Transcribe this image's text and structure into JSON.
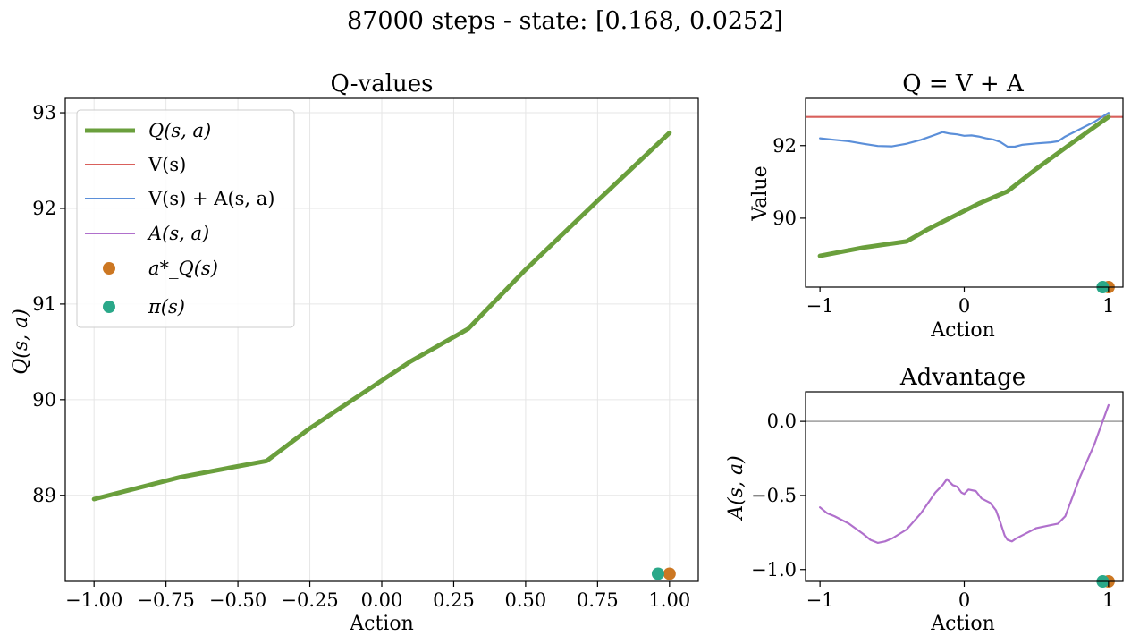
{
  "suptitle": "87000 steps - state: [0.168, 0.0252]",
  "colors": {
    "q": "#6a9f3c",
    "v": "#d9605c",
    "vpa": "#5b8fd9",
    "adv": "#b070cc",
    "aq": "#cc7722",
    "pi": "#2aa889",
    "zero_line": "#aaaaaa"
  },
  "legend": {
    "q": "Q(s, a)",
    "v": "V(s)",
    "vpa": "V(s) + A(s, a)",
    "adv": "A(s, a)",
    "aq": "a*_Q(s)",
    "pi": "π(s)"
  },
  "chart_data": [
    {
      "type": "line",
      "title": "Q-values",
      "xlabel": "Action",
      "ylabel": "Q(s, a)",
      "xlim": [
        -1.1,
        1.1
      ],
      "ylim": [
        88.1,
        93.15
      ],
      "xticks": [
        -1.0,
        -0.75,
        -0.5,
        -0.25,
        0.0,
        0.25,
        0.5,
        0.75,
        1.0
      ],
      "xtick_labels": [
        "−1.00",
        "−0.75",
        "−0.50",
        "−0.25",
        "0.00",
        "0.25",
        "0.50",
        "0.75",
        "1.00"
      ],
      "yticks": [
        89,
        90,
        91,
        92,
        93
      ],
      "ytick_labels": [
        "89",
        "90",
        "91",
        "92",
        "93"
      ],
      "grid": true,
      "legend_position": "upper-left",
      "series": [
        {
          "name": "Q(s, a)",
          "key": "q",
          "x": [
            -1.0,
            -0.7,
            -0.4,
            -0.25,
            -0.1,
            0.1,
            0.3,
            0.5,
            0.75,
            1.0
          ],
          "y": [
            88.96,
            89.19,
            89.36,
            89.7,
            90.0,
            90.4,
            90.74,
            91.36,
            92.08,
            92.79
          ]
        }
      ],
      "markers": [
        {
          "name": "a*_Q(s)",
          "key": "aq",
          "x": 1.0,
          "y": 88.18
        },
        {
          "name": "π(s)",
          "key": "pi",
          "x": 0.96,
          "y": 88.18
        }
      ]
    },
    {
      "type": "line",
      "title": "Q = V + A",
      "xlabel": "Action",
      "ylabel": "Value",
      "xlim": [
        -1.1,
        1.1
      ],
      "ylim": [
        88.1,
        93.3
      ],
      "xticks": [
        -1,
        0,
        1
      ],
      "xtick_labels": [
        "−1",
        "0",
        "1"
      ],
      "yticks": [
        90,
        92
      ],
      "ytick_labels": [
        "90",
        "92"
      ],
      "grid": false,
      "hline": {
        "key": "v",
        "y": 92.79
      },
      "series": [
        {
          "name": "Q(s, a)",
          "key": "q",
          "x": [
            -1.0,
            -0.7,
            -0.4,
            -0.25,
            -0.1,
            0.1,
            0.3,
            0.5,
            0.75,
            1.0
          ],
          "y": [
            88.96,
            89.19,
            89.36,
            89.7,
            90.0,
            90.4,
            90.74,
            91.36,
            92.08,
            92.79
          ]
        },
        {
          "name": "V(s) + A(s, a)",
          "key": "vpa",
          "x": [
            -1.0,
            -0.9,
            -0.8,
            -0.7,
            -0.6,
            -0.5,
            -0.4,
            -0.3,
            -0.2,
            -0.15,
            -0.1,
            -0.05,
            0.0,
            0.05,
            0.1,
            0.15,
            0.2,
            0.25,
            0.3,
            0.35,
            0.4,
            0.5,
            0.6,
            0.65,
            0.7,
            0.8,
            0.9,
            1.0
          ],
          "y": [
            92.2,
            92.16,
            92.12,
            92.05,
            91.99,
            91.98,
            92.05,
            92.16,
            92.3,
            92.37,
            92.33,
            92.31,
            92.27,
            92.28,
            92.25,
            92.2,
            92.17,
            92.1,
            91.97,
            91.97,
            92.02,
            92.06,
            92.09,
            92.12,
            92.25,
            92.45,
            92.65,
            92.9
          ]
        }
      ],
      "markers": [
        {
          "name": "a*_Q(s)",
          "key": "aq",
          "x": 1.0,
          "y": 88.1
        },
        {
          "name": "π(s)",
          "key": "pi",
          "x": 0.96,
          "y": 88.1
        }
      ]
    },
    {
      "type": "line",
      "title": "Advantage",
      "xlabel": "Action",
      "ylabel": "A(s, a)",
      "xlim": [
        -1.1,
        1.1
      ],
      "ylim": [
        -1.08,
        0.2
      ],
      "xticks": [
        -1,
        0,
        1
      ],
      "xtick_labels": [
        "−1",
        "0",
        "1"
      ],
      "yticks": [
        -1.0,
        -0.5,
        0.0
      ],
      "ytick_labels": [
        "−1.0",
        "−0.5",
        "0.0"
      ],
      "grid": false,
      "hline": {
        "key": "zero_line",
        "y": 0.0
      },
      "series": [
        {
          "name": "A(s, a)",
          "key": "adv",
          "x": [
            -1.0,
            -0.95,
            -0.9,
            -0.8,
            -0.7,
            -0.65,
            -0.6,
            -0.55,
            -0.5,
            -0.4,
            -0.3,
            -0.2,
            -0.15,
            -0.12,
            -0.08,
            -0.05,
            -0.02,
            0.0,
            0.03,
            0.08,
            0.12,
            0.18,
            0.22,
            0.25,
            0.28,
            0.3,
            0.33,
            0.36,
            0.4,
            0.5,
            0.6,
            0.65,
            0.7,
            0.8,
            0.9,
            1.0
          ],
          "y": [
            -0.58,
            -0.62,
            -0.64,
            -0.69,
            -0.76,
            -0.8,
            -0.82,
            -0.81,
            -0.79,
            -0.73,
            -0.62,
            -0.48,
            -0.43,
            -0.39,
            -0.43,
            -0.44,
            -0.48,
            -0.49,
            -0.46,
            -0.47,
            -0.52,
            -0.55,
            -0.6,
            -0.68,
            -0.77,
            -0.8,
            -0.81,
            -0.79,
            -0.77,
            -0.72,
            -0.7,
            -0.69,
            -0.64,
            -0.38,
            -0.16,
            0.11
          ]
        }
      ],
      "markers": [
        {
          "name": "a*_Q(s)",
          "key": "aq",
          "x": 1.0,
          "y": -1.08
        },
        {
          "name": "π(s)",
          "key": "pi",
          "x": 0.96,
          "y": -1.08
        }
      ]
    }
  ]
}
